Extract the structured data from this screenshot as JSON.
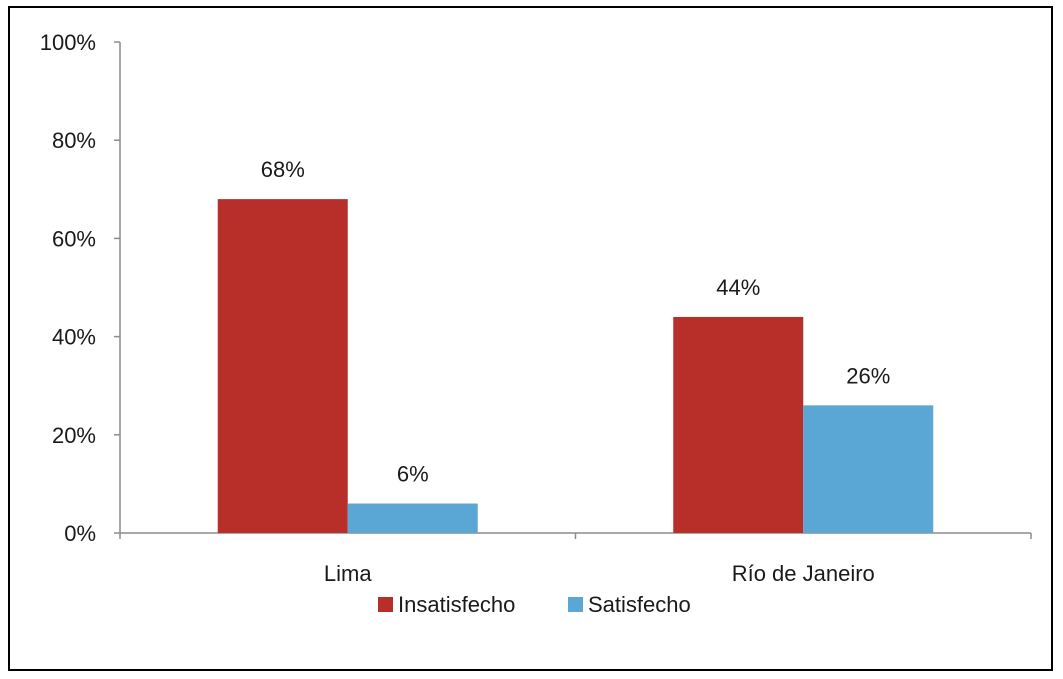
{
  "chart_data": {
    "type": "bar",
    "categories": [
      "Lima",
      "Río de Janeiro"
    ],
    "series": [
      {
        "name": "Insatisfecho",
        "color": "#b82f2a",
        "values": [
          68,
          44
        ],
        "labels": [
          "68%",
          "44%"
        ]
      },
      {
        "name": "Satisfecho",
        "color": "#5aa7d6",
        "values": [
          6,
          26
        ],
        "labels": [
          "6%",
          "26%"
        ]
      }
    ],
    "ylim": [
      0,
      100
    ],
    "yticks": [
      0,
      20,
      40,
      60,
      80,
      100
    ],
    "ytick_labels": [
      "0%",
      "20%",
      "40%",
      "60%",
      "80%",
      "100%"
    ],
    "grid": false,
    "legend_position": "bottom",
    "title": "",
    "xlabel": "",
    "ylabel": ""
  }
}
